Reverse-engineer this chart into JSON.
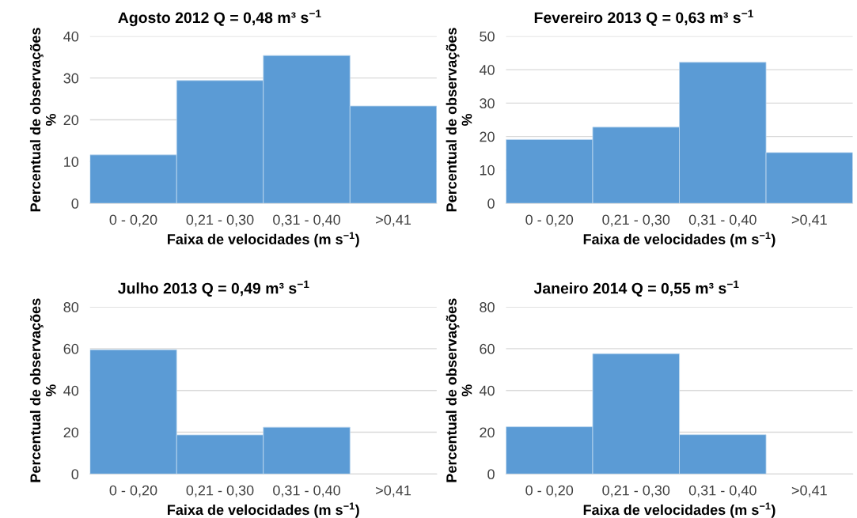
{
  "chart_data": [
    {
      "type": "bar",
      "title": "Agosto 2012 Q = 0,48 m³ s$^{−1}$",
      "xlabel": "Faixa de velocidades (m s$^{−1}$)",
      "ylabel": "Percentual de observações\n%",
      "categories": [
        "0 - 0,20",
        "0,21 - 0,30",
        "0,31 - 0,40",
        ">0,41"
      ],
      "values": [
        11.6,
        29.4,
        35.4,
        23.3
      ],
      "color": "#5b9bd5",
      "ylim": [
        0,
        40
      ],
      "yticks": [
        0,
        10,
        20,
        30,
        40
      ],
      "grid": "y",
      "legend": false
    },
    {
      "type": "bar",
      "title": "Fevereiro 2013 Q = 0,63 m³ s$^{−1}$",
      "xlabel": "Faixa de velocidades (m s$^{−1}$)",
      "ylabel": "Percentual de observações\n%",
      "categories": [
        "0 - 0,20",
        "0,21 - 0,30",
        "0,31 - 0,40",
        ">0,41"
      ],
      "values": [
        19.1,
        22.8,
        42.2,
        15.2
      ],
      "color": "#5b9bd5",
      "ylim": [
        0,
        50
      ],
      "yticks": [
        0,
        10,
        20,
        30,
        40,
        50
      ],
      "grid": "y",
      "legend": false
    },
    {
      "type": "bar",
      "title": "Julho 2013 Q = 0,49 m³ s$^{−1}$",
      "xlabel": "Faixa de velocidades (m s$^{−1}$)",
      "ylabel": "Percentual de observações\n%",
      "categories": [
        "0 - 0,20",
        "0,21 - 0,30",
        "0,31 - 0,40",
        ">0,41"
      ],
      "values": [
        59.5,
        18.7,
        22.4,
        0
      ],
      "color": "#5b9bd5",
      "ylim": [
        0,
        80
      ],
      "yticks": [
        0,
        20,
        40,
        60,
        80
      ],
      "grid": "y",
      "legend": false
    },
    {
      "type": "bar",
      "title": "Janeiro 2014 Q = 0,55 m³ s$^{−1}$",
      "xlabel": "Faixa de velocidades (m s$^{−1}$)",
      "ylabel": "Percentual de observações\n%",
      "categories": [
        "0 - 0,20",
        "0,21 - 0,30",
        "0,31 - 0,40",
        ">0,41"
      ],
      "values": [
        22.6,
        57.6,
        18.8,
        0
      ],
      "color": "#5b9bd5",
      "ylim": [
        0,
        80
      ],
      "yticks": [
        0,
        20,
        40,
        60,
        80
      ],
      "grid": "y",
      "legend": false
    }
  ]
}
